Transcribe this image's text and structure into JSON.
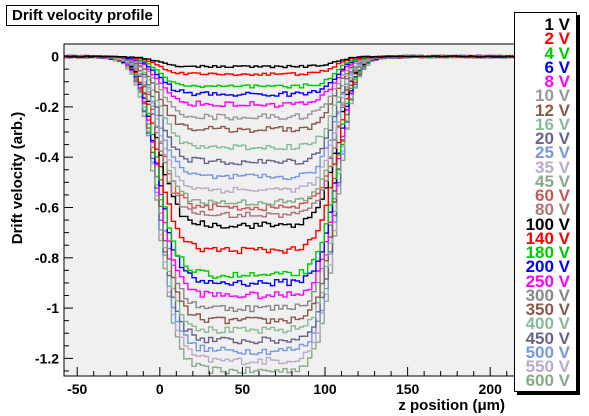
{
  "chart_data": {
    "type": "line",
    "title": "Drift velocity profile",
    "xlabel": "z position (μm)",
    "ylabel": "Drift velocity (arb.)",
    "xlim": [
      -58,
      215
    ],
    "ylim": [
      -1.27,
      0.05
    ],
    "xticks": [
      -50,
      0,
      50,
      100,
      150,
      200
    ],
    "yticks": [
      0,
      -0.2,
      -0.4,
      -0.6,
      -0.8,
      -1,
      -1.2
    ],
    "x_tick_labels": [
      "-50",
      "0",
      "50",
      "100",
      "150",
      "200"
    ],
    "y_tick_labels": [
      "0",
      "-0.2",
      "-0.4",
      "-0.6",
      "-0.8",
      "-1",
      "-1.2"
    ],
    "grid": false,
    "legend_position": "right",
    "series": [
      {
        "name": "1 V",
        "color": "#000000",
        "min": -0.04
      },
      {
        "name": "2 V",
        "color": "#ff0000",
        "min": -0.07
      },
      {
        "name": "4 V",
        "color": "#00cc00",
        "min": -0.12
      },
      {
        "name": "6 V",
        "color": "#0000ff",
        "min": -0.15
      },
      {
        "name": "8 V",
        "color": "#ff00ff",
        "min": -0.19
      },
      {
        "name": "10 V",
        "color": "#999999",
        "min": -0.24
      },
      {
        "name": "12 V",
        "color": "#8b5a4a",
        "min": -0.29
      },
      {
        "name": "16 V",
        "color": "#88bb99",
        "min": -0.36
      },
      {
        "name": "20 V",
        "color": "#666688",
        "min": -0.42
      },
      {
        "name": "25 V",
        "color": "#7799dd",
        "min": -0.48
      },
      {
        "name": "35 V",
        "color": "#bbaacc",
        "min": -0.53
      },
      {
        "name": "45 V",
        "color": "#88aa88",
        "min": -0.58
      },
      {
        "name": "60 V",
        "color": "#cc5555",
        "min": -0.6
      },
      {
        "name": "80 V",
        "color": "#aa7777",
        "min": -0.63
      },
      {
        "name": "100 V",
        "color": "#000000",
        "min": -0.67
      },
      {
        "name": "140 V",
        "color": "#ff0000",
        "min": -0.77
      },
      {
        "name": "180 V",
        "color": "#00cc00",
        "min": -0.87
      },
      {
        "name": "200 V",
        "color": "#0000ff",
        "min": -0.9
      },
      {
        "name": "250 V",
        "color": "#ff00ff",
        "min": -0.95
      },
      {
        "name": "300 V",
        "color": "#888888",
        "min": -1.0
      },
      {
        "name": "350 V",
        "color": "#8b5a4a",
        "min": -1.05
      },
      {
        "name": "400 V",
        "color": "#88bb99",
        "min": -1.09
      },
      {
        "name": "450 V",
        "color": "#666688",
        "min": -1.13
      },
      {
        "name": "500 V",
        "color": "#7799dd",
        "min": -1.17
      },
      {
        "name": "550 V",
        "color": "#bbaacc",
        "min": -1.21
      },
      {
        "name": "600 V",
        "color": "#88aa88",
        "min": -1.25
      }
    ]
  }
}
